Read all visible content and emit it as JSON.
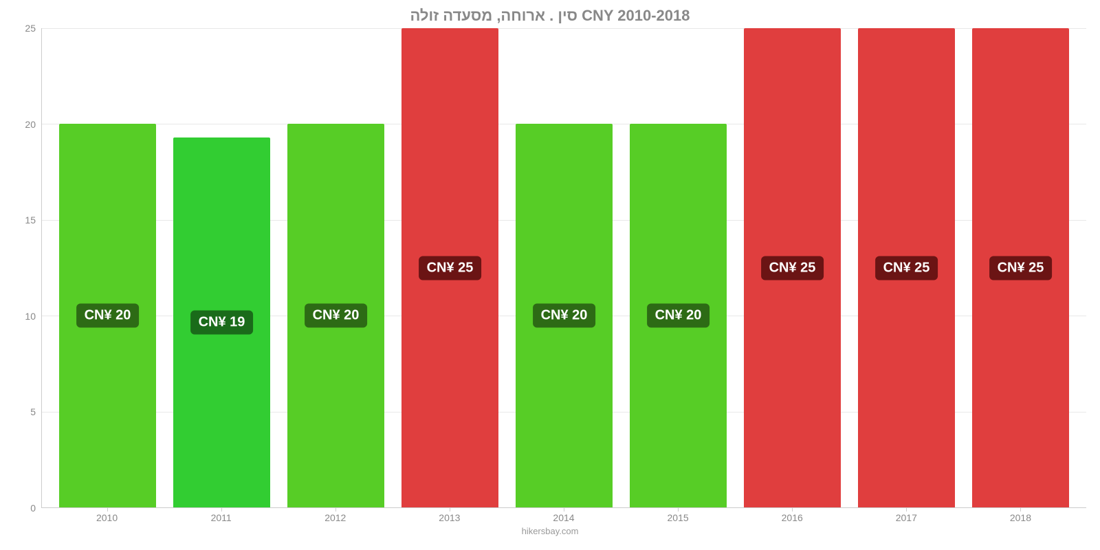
{
  "chart": {
    "type": "bar",
    "title": "סין . ארוחה, מסעדה זולה CNY 2010-2018",
    "title_color": "#888888",
    "title_fontsize": 22,
    "background_color": "#ffffff",
    "grid_color": "#e8e8e8",
    "axis_color": "#cccccc",
    "tick_label_color": "#888888",
    "tick_label_fontsize": 14,
    "ylim": [
      0,
      25
    ],
    "yticks": [
      0,
      5,
      10,
      15,
      20,
      25
    ],
    "categories": [
      "2010",
      "2011",
      "2012",
      "2013",
      "2014",
      "2015",
      "2016",
      "2017",
      "2018"
    ],
    "values": [
      20,
      19.3,
      20,
      25,
      20,
      20,
      25,
      25,
      25
    ],
    "bar_colors": [
      "#57cd26",
      "#32cd32",
      "#57cd26",
      "#e03e3e",
      "#57cd26",
      "#57cd26",
      "#e03e3e",
      "#e03e3e",
      "#e03e3e"
    ],
    "bar_labels": [
      "CN¥ 20",
      "CN¥ 19",
      "CN¥ 20",
      "CN¥ 25",
      "CN¥ 20",
      "CN¥ 20",
      "CN¥ 25",
      "CN¥ 25",
      "CN¥ 25"
    ],
    "bar_label_bg": [
      "#2d6b15",
      "#1a6b1a",
      "#2d6b15",
      "#6b1414",
      "#2d6b15",
      "#2d6b15",
      "#6b1414",
      "#6b1414",
      "#6b1414"
    ],
    "bar_label_color": "#ffffff",
    "bar_label_fontsize": 20,
    "bar_gap": 25,
    "footer": "hikersbay.com",
    "footer_color": "#999999"
  }
}
